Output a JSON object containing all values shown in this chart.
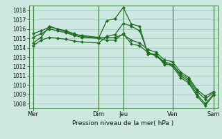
{
  "bg_color": "#cce8e0",
  "plot_bg_color": "#cce8e0",
  "grid_color": "#aacccc",
  "line_color": "#1a6b1a",
  "marker_color": "#1a6b1a",
  "xlabel": "Pression niveau de la mer( hPa )",
  "ylim": [
    1007.5,
    1018.5
  ],
  "yticks": [
    1008,
    1009,
    1010,
    1011,
    1012,
    1013,
    1014,
    1015,
    1016,
    1017,
    1018
  ],
  "xtick_labels": [
    "Mer",
    "Dim",
    "Jeu",
    "Ven",
    "Sam"
  ],
  "xtick_positions": [
    0,
    8,
    11,
    17,
    22
  ],
  "vlines": [
    0,
    8,
    11,
    17,
    22
  ],
  "series1_x": [
    0,
    1,
    2,
    3,
    4,
    5,
    6,
    8,
    9,
    10,
    11,
    12,
    13,
    14,
    15,
    16,
    17,
    18,
    19,
    20,
    21,
    22
  ],
  "series1_y": [
    1014.5,
    1015.1,
    1016.3,
    1016.0,
    1015.8,
    1015.5,
    1015.2,
    1015.0,
    1016.9,
    1017.1,
    1018.3,
    1016.5,
    1016.3,
    1013.3,
    1013.3,
    1012.2,
    1012.2,
    1011.0,
    1010.4,
    1009.0,
    1008.0,
    1009.0
  ],
  "series2_x": [
    0,
    1,
    2,
    3,
    4,
    5,
    6,
    8,
    9,
    10,
    11,
    12,
    13,
    14,
    15,
    16,
    17,
    18,
    19,
    20,
    21,
    22
  ],
  "series2_y": [
    1015.1,
    1015.5,
    1016.0,
    1015.8,
    1015.6,
    1015.3,
    1015.1,
    1015.0,
    1014.8,
    1014.8,
    1015.5,
    1014.4,
    1014.2,
    1013.5,
    1013.2,
    1012.5,
    1012.2,
    1011.2,
    1010.6,
    1009.3,
    1008.5,
    1009.2
  ],
  "series3_x": [
    0,
    1,
    2,
    3,
    4,
    5,
    6,
    8,
    9,
    10,
    11,
    12,
    13,
    14,
    15,
    16,
    17,
    18,
    19,
    20,
    21,
    22
  ],
  "series3_y": [
    1015.5,
    1015.8,
    1016.2,
    1016.0,
    1015.7,
    1015.4,
    1015.3,
    1015.1,
    1015.1,
    1015.1,
    1015.4,
    1014.8,
    1014.5,
    1013.8,
    1013.5,
    1012.7,
    1012.5,
    1011.4,
    1010.8,
    1009.5,
    1008.8,
    1009.3
  ],
  "series4_x": [
    0,
    1,
    2,
    3,
    4,
    5,
    6,
    8,
    9,
    10,
    11,
    12,
    13,
    14,
    15,
    16,
    17,
    18,
    19,
    20,
    21,
    22
  ],
  "series4_y": [
    1014.2,
    1014.8,
    1015.1,
    1015.0,
    1014.9,
    1014.7,
    1014.6,
    1014.5,
    1015.2,
    1015.4,
    1016.6,
    1016.3,
    1015.8,
    1013.5,
    1013.1,
    1012.4,
    1012.0,
    1010.8,
    1010.2,
    1008.8,
    1007.8,
    1008.9
  ]
}
